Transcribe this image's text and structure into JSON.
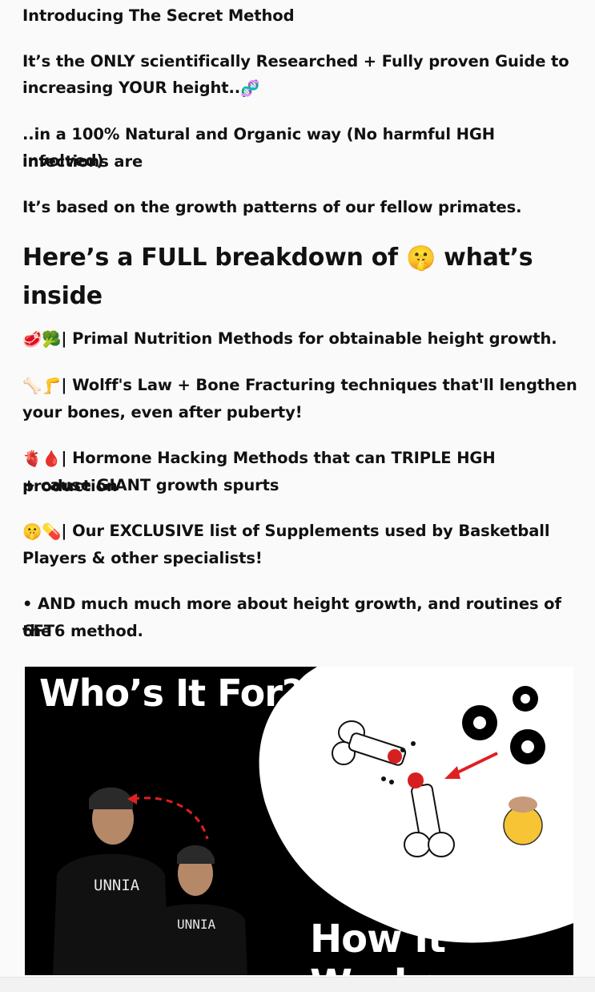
{
  "texts": {
    "intro": "Introducing The Secret Method",
    "claim_a": "It’s the ONLY scientifically Researched + Fully proven Guide to",
    "claim_b": "increasing YOUR height..",
    "natural_a": "..in a 100% Natural and Organic way (No harmful HGH infections are",
    "natural_b": "involved).",
    "based": "It’s based on the growth patterns of our fellow primates.",
    "heading_a": "Here’s a FULL breakdown of",
    "heading_b": "what’s",
    "heading_c": "inside",
    "item1": "| Primal Nutrition Methods for obtainable height growth.",
    "item2_a": "| Wolff's Law + Bone Fracturing techniques that'll lengthen",
    "item2_b": "your bones, even after puberty!",
    "item3_a": "| Hormone Hacking Methods that can TRIPLE HGH production",
    "item3_b": "+ cause GIANT growth spurts",
    "item4_a": "| Our EXCLUSIVE list of Supplements used by Basketball",
    "item4_b": "Players & other specialists!",
    "item5_a": "• AND much much more about height growth, and routines of the",
    "item5_b": "6FT6 method."
  },
  "emojis": {
    "dna": "🧬",
    "shush": "🤫",
    "meat_broccoli": "🥩🥦",
    "bone_leg": "🦴🦵",
    "heart_drop": "🫀🩸",
    "shush_pill": "🤫💊",
    "mindblown": "🤯"
  },
  "banner": {
    "title": "Who’s It For?",
    "subtitle": "How It Works",
    "shirt_label_1": "UNNIA",
    "shirt_label_2": "UNNIA"
  },
  "colors": {
    "background": "#fafafa",
    "text": "#111111",
    "banner_black": "#000000",
    "arrow_red": "#e02020"
  }
}
